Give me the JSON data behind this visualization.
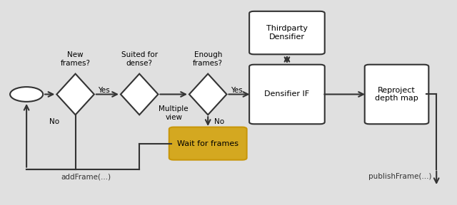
{
  "bg_color": "#e0e0e0",
  "colors": {
    "wait_fill": "#d4a820",
    "wait_border": "#c8960a",
    "box_fill": "#ffffff",
    "box_border": "#333333",
    "arrow": "#333333",
    "diamond_fill": "#ffffff",
    "diamond_border": "#333333",
    "circle_fill": "#ffffff",
    "circle_border": "#333333",
    "text": "#111111",
    "bg": "#e0e0e0"
  },
  "labels": {
    "new_frames": "New\nframes?",
    "suited": "Suited for\ndense?",
    "enough": "Enough\nframes?",
    "no_loop": "No",
    "yes1": "Yes",
    "multiple_view": "Multiple\nview",
    "yes2": "Yes",
    "no_wait": "No",
    "densifier_if": "Densifier IF",
    "thirdparty": "Thirdparty\nDensifier",
    "reproject": "Reproject\ndepth map",
    "wait": "Wait for frames",
    "add_frame": "addFrame(...)",
    "publish_frame": "publishFrame(...)"
  }
}
